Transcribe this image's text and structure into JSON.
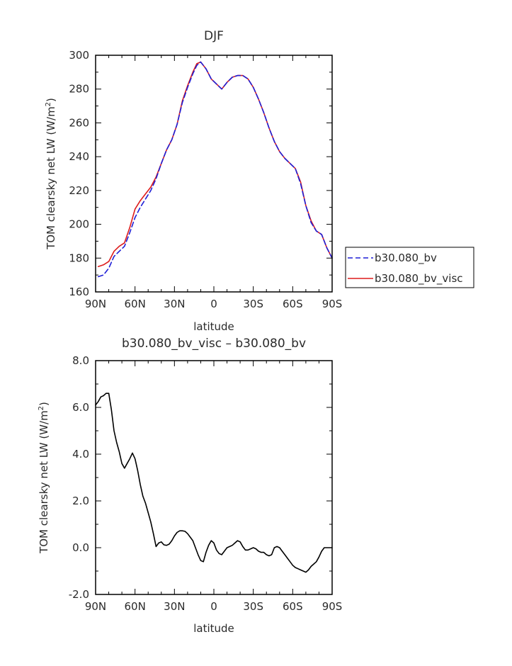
{
  "chart_data": [
    {
      "type": "line",
      "title": "DJF",
      "xlabel": "latitude",
      "ylabel": "TOM clearsky net LW (W/m²)",
      "ylabel_parts": [
        "TOM clearsky net LW (W/m",
        "2",
        ")"
      ],
      "xlim": [
        -90,
        90
      ],
      "ylim": [
        160,
        300
      ],
      "xticks": [
        -90,
        -60,
        -30,
        0,
        30,
        60,
        90
      ],
      "xtick_labels": [
        "90N",
        "60N",
        "30N",
        "0",
        "30S",
        "60S",
        "90S"
      ],
      "yticks": [
        160,
        180,
        200,
        220,
        240,
        260,
        280,
        300
      ],
      "ytick_labels": [
        "160",
        "180",
        "200",
        "220",
        "240",
        "260",
        "280",
        "300"
      ],
      "legend_position": "right",
      "series": [
        {
          "name": "b30.080_bv",
          "color": "#1f1fd6",
          "dash": "dashed",
          "x": [
            -88,
            -84,
            -80,
            -76,
            -72,
            -68,
            -64,
            -60,
            -56,
            -52,
            -48,
            -44,
            -40,
            -36,
            -32,
            -28,
            -24,
            -20,
            -16,
            -13,
            -10,
            -6,
            -2,
            2,
            6,
            10,
            14,
            18,
            22,
            26,
            30,
            34,
            38,
            42,
            46,
            50,
            54,
            58,
            62,
            66,
            70,
            74,
            78,
            82,
            86,
            90
          ],
          "y": [
            169,
            170,
            174,
            181,
            184,
            187,
            195,
            204,
            210,
            215,
            220,
            227,
            236,
            244,
            250,
            259,
            272,
            281,
            289,
            294,
            296,
            292,
            286,
            283,
            280,
            284,
            287,
            288,
            288,
            286,
            281,
            274,
            266,
            257,
            249,
            243,
            239,
            236,
            233,
            224,
            211,
            201,
            196,
            194,
            186,
            180
          ]
        },
        {
          "name": "b30.080_bv_visc",
          "color": "#dd1c1c",
          "dash": "solid",
          "x": [
            -88,
            -84,
            -80,
            -76,
            -72,
            -68,
            -64,
            -60,
            -56,
            -52,
            -48,
            -44,
            -40,
            -36,
            -32,
            -28,
            -24,
            -20,
            -16,
            -13,
            -10,
            -6,
            -2,
            2,
            6,
            10,
            14,
            18,
            22,
            26,
            30,
            34,
            38,
            42,
            46,
            50,
            54,
            58,
            62,
            66,
            70,
            74,
            78,
            82,
            86,
            90
          ],
          "y": [
            175,
            176,
            178,
            184,
            187,
            189,
            198,
            209,
            214,
            218,
            222,
            228,
            236,
            244,
            250,
            259,
            273,
            282,
            290,
            295,
            296,
            292,
            286,
            283,
            280,
            284,
            287,
            288,
            288,
            286,
            281,
            274,
            266,
            257,
            249,
            243,
            239,
            236,
            233,
            225,
            211,
            202,
            196,
            194,
            186,
            180
          ]
        }
      ]
    },
    {
      "type": "line",
      "title": "b30.080_bv_visc – b30.080_bv",
      "xlabel": "latitude",
      "ylabel": "TOM clearsky net LW (W/m²)",
      "ylabel_parts": [
        "TOM clearsky net LW (W/m",
        "2",
        ")"
      ],
      "xlim": [
        -90,
        90
      ],
      "ylim": [
        -2.0,
        8.0
      ],
      "xticks": [
        -90,
        -60,
        -30,
        0,
        30,
        60,
        90
      ],
      "xtick_labels": [
        "90N",
        "60N",
        "30N",
        "0",
        "30S",
        "60S",
        "90S"
      ],
      "yticks": [
        -2.0,
        0.0,
        2.0,
        4.0,
        6.0,
        8.0
      ],
      "ytick_labels": [
        "-2.0",
        "0.0",
        "2.0",
        "4.0",
        "6.0",
        "8.0"
      ],
      "series": [
        {
          "color": "#000000",
          "dash": "solid",
          "x": [
            -90,
            -88,
            -86,
            -84,
            -82,
            -80,
            -78,
            -76,
            -74,
            -72,
            -70,
            -68,
            -66,
            -64,
            -62,
            -60,
            -58,
            -56,
            -54,
            -52,
            -50,
            -48,
            -46,
            -44,
            -42,
            -40,
            -38,
            -36,
            -34,
            -32,
            -30,
            -28,
            -26,
            -24,
            -22,
            -20,
            -18,
            -16,
            -14,
            -12,
            -10,
            -8,
            -6,
            -4,
            -2,
            0,
            2,
            4,
            6,
            8,
            10,
            12,
            14,
            16,
            18,
            20,
            22,
            24,
            26,
            28,
            30,
            32,
            34,
            36,
            38,
            40,
            42,
            44,
            46,
            48,
            50,
            52,
            54,
            56,
            58,
            60,
            62,
            64,
            66,
            68,
            70,
            72,
            74,
            76,
            78,
            80,
            82,
            84,
            86,
            88,
            90
          ],
          "y": [
            6.1,
            6.25,
            6.45,
            6.5,
            6.6,
            6.6,
            5.9,
            5.0,
            4.5,
            4.1,
            3.6,
            3.4,
            3.6,
            3.8,
            4.05,
            3.8,
            3.3,
            2.7,
            2.2,
            1.9,
            1.5,
            1.1,
            0.6,
            0.05,
            0.2,
            0.25,
            0.12,
            0.1,
            0.15,
            0.3,
            0.5,
            0.65,
            0.72,
            0.72,
            0.7,
            0.6,
            0.45,
            0.3,
            0.0,
            -0.3,
            -0.55,
            -0.6,
            -0.2,
            0.1,
            0.3,
            0.2,
            -0.1,
            -0.25,
            -0.3,
            -0.15,
            0.0,
            0.05,
            0.1,
            0.2,
            0.3,
            0.25,
            0.05,
            -0.1,
            -0.1,
            -0.05,
            0.0,
            -0.05,
            -0.15,
            -0.2,
            -0.2,
            -0.3,
            -0.35,
            -0.3,
            0.0,
            0.05,
            0.0,
            -0.15,
            -0.3,
            -0.45,
            -0.6,
            -0.75,
            -0.85,
            -0.9,
            -0.95,
            -1.0,
            -1.05,
            -0.95,
            -0.8,
            -0.7,
            -0.6,
            -0.4,
            -0.15,
            0.0,
            0.0,
            0.0,
            0.0
          ]
        }
      ]
    }
  ]
}
